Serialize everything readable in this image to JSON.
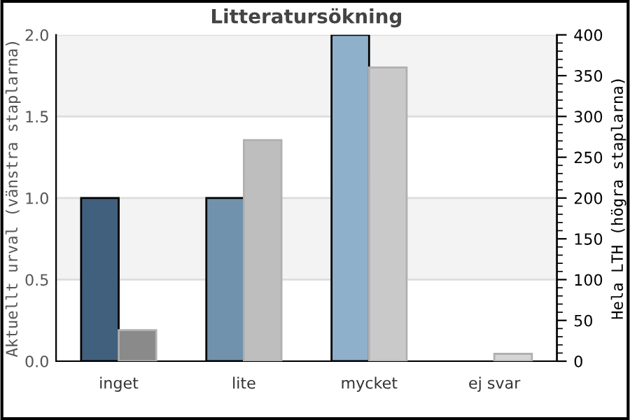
{
  "chart_data": {
    "type": "bar",
    "title": "Litteratursökning",
    "ylabel": "Aktuellt urval (vänstra staplarna)",
    "y2label": "Hela LTH (högra staplarna)",
    "categories": [
      "inget",
      "lite",
      "mycket",
      "ej svar"
    ],
    "series": [
      {
        "axis": "y",
        "colors": [
          "#41607d",
          "#7092ad",
          "#8fb0cb",
          "#8fb0cb"
        ],
        "values": [
          1,
          1,
          2,
          null
        ]
      },
      {
        "axis": "y2",
        "colors": [
          "#8a8a8a",
          "#bebebe",
          "#c9c9c9",
          "#d6d6d6"
        ],
        "values": [
          38,
          271,
          360,
          9
        ]
      }
    ],
    "ylim": [
      0,
      2
    ],
    "yticks": [
      {
        "value": 0,
        "label": "0.0"
      },
      {
        "value": 0.5,
        "label": "0.5"
      },
      {
        "value": 1,
        "label": "1.0"
      },
      {
        "value": 1.5,
        "label": "1.5"
      },
      {
        "value": 2,
        "label": "2.0"
      }
    ],
    "y2lim": [
      0,
      400
    ],
    "y2ticks": [
      0,
      50,
      100,
      150,
      200,
      250,
      300,
      350,
      400
    ],
    "bands": [
      {
        "axis": "y",
        "from": 0.5,
        "to": 1.0,
        "color": "#f3f3f3"
      },
      {
        "axis": "y",
        "from": 1.5,
        "to": 2.0,
        "color": "#f3f3f3"
      }
    ],
    "grid": "y",
    "legend": false
  }
}
